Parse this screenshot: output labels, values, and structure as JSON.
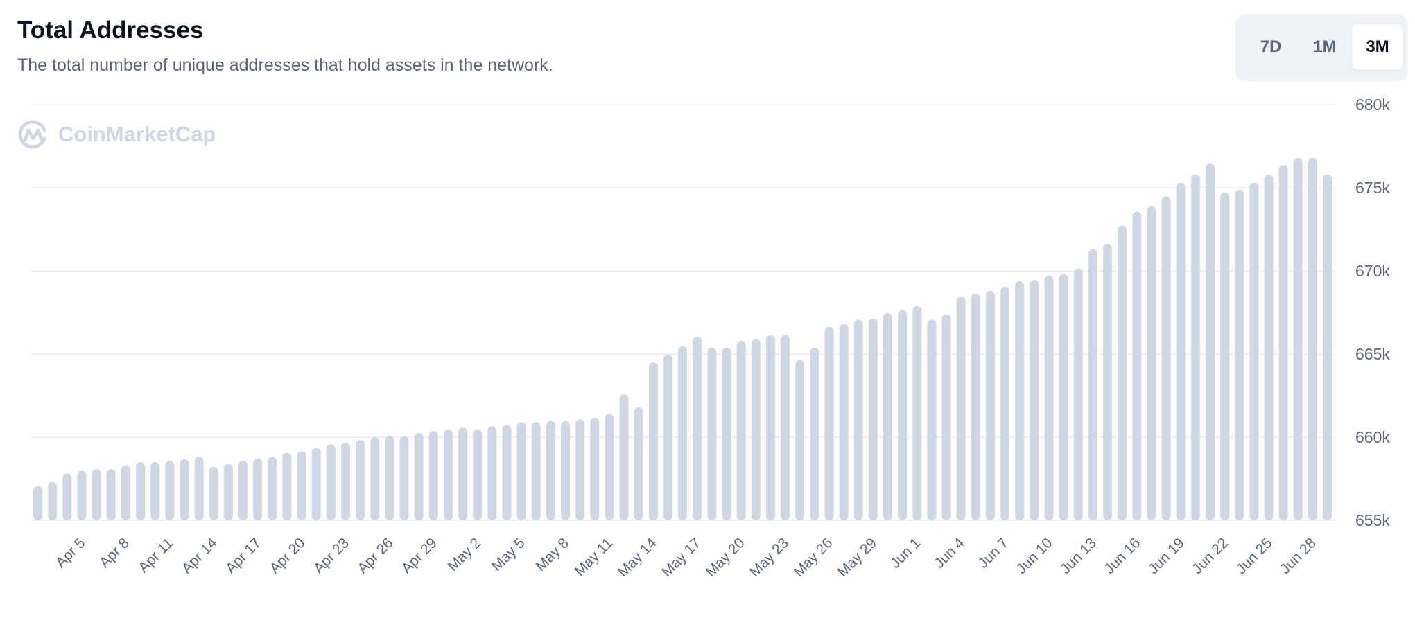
{
  "header": {
    "title": "Total Addresses",
    "subtitle": "The total number of unique addresses that hold assets in the network."
  },
  "range_toggle": {
    "options": [
      "7D",
      "1M",
      "3M"
    ],
    "selected": "3M"
  },
  "watermark": {
    "text": "CoinMarketCap"
  },
  "colors": {
    "bar": "#cfd6e4",
    "grid": "#eff2f5",
    "text": "#58667e",
    "title": "#0d1421"
  },
  "chart_data": {
    "type": "bar",
    "title": "Total Addresses",
    "xlabel": "",
    "ylabel": "",
    "ylim": [
      655000,
      680000
    ],
    "y_ticks": [
      "655k",
      "660k",
      "665k",
      "670k",
      "675k",
      "680k"
    ],
    "y_tick_values": [
      655000,
      660000,
      665000,
      670000,
      675000,
      680000
    ],
    "y_axis_position": "right",
    "grid": true,
    "x_tick_labels": [
      "Apr 5",
      "Apr 8",
      "Apr 11",
      "Apr 14",
      "Apr 17",
      "Apr 20",
      "Apr 23",
      "Apr 26",
      "Apr 29",
      "May 2",
      "May 5",
      "May 8",
      "May 11",
      "May 14",
      "May 17",
      "May 20",
      "May 23",
      "May 26",
      "May 29",
      "Jun 1",
      "Jun 4",
      "Jun 7",
      "Jun 10",
      "Jun 13",
      "Jun 16",
      "Jun 19",
      "Jun 22",
      "Jun 25",
      "Jun 28"
    ],
    "categories": [
      "Apr 2",
      "Apr 3",
      "Apr 4",
      "Apr 5",
      "Apr 6",
      "Apr 7",
      "Apr 8",
      "Apr 9",
      "Apr 10",
      "Apr 11",
      "Apr 12",
      "Apr 13",
      "Apr 14",
      "Apr 15",
      "Apr 16",
      "Apr 17",
      "Apr 18",
      "Apr 19",
      "Apr 20",
      "Apr 21",
      "Apr 22",
      "Apr 23",
      "Apr 24",
      "Apr 25",
      "Apr 26",
      "Apr 27",
      "Apr 28",
      "Apr 29",
      "Apr 30",
      "May 1",
      "May 2",
      "May 3",
      "May 4",
      "May 5",
      "May 6",
      "May 7",
      "May 8",
      "May 9",
      "May 10",
      "May 11",
      "May 12",
      "May 13",
      "May 14",
      "May 15",
      "May 16",
      "May 17",
      "May 18",
      "May 19",
      "May 20",
      "May 21",
      "May 22",
      "May 23",
      "May 24",
      "May 25",
      "May 26",
      "May 27",
      "May 28",
      "May 29",
      "May 30",
      "May 31",
      "Jun 1",
      "Jun 2",
      "Jun 3",
      "Jun 4",
      "Jun 5",
      "Jun 6",
      "Jun 7",
      "Jun 8",
      "Jun 9",
      "Jun 10",
      "Jun 11",
      "Jun 12",
      "Jun 13",
      "Jun 14",
      "Jun 15",
      "Jun 16",
      "Jun 17",
      "Jun 18",
      "Jun 19",
      "Jun 20",
      "Jun 21",
      "Jun 22",
      "Jun 23",
      "Jun 24",
      "Jun 25",
      "Jun 26",
      "Jun 27",
      "Jun 28",
      "Jun 29"
    ],
    "values": [
      657060,
      657320,
      657820,
      657990,
      658080,
      658080,
      658320,
      658510,
      658510,
      658580,
      658670,
      658820,
      658220,
      658390,
      658580,
      658720,
      658820,
      659050,
      659150,
      659340,
      659570,
      659670,
      659830,
      660000,
      660070,
      660070,
      660240,
      660380,
      660470,
      660570,
      660470,
      660660,
      660730,
      660900,
      660900,
      660970,
      660970,
      661070,
      661160,
      661400,
      662580,
      661800,
      664500,
      664980,
      665470,
      666040,
      665380,
      665380,
      665800,
      665900,
      666140,
      666140,
      664640,
      665380,
      666640,
      666800,
      667060,
      667130,
      667460,
      667630,
      667890,
      667060,
      667390,
      668460,
      668630,
      668790,
      669050,
      669380,
      669450,
      669720,
      669810,
      670140,
      671300,
      671640,
      672730,
      673550,
      673890,
      674480,
      675310,
      675800,
      676470,
      674720,
      674880,
      675310,
      675800,
      676370,
      676800,
      676800,
      675800
    ]
  }
}
